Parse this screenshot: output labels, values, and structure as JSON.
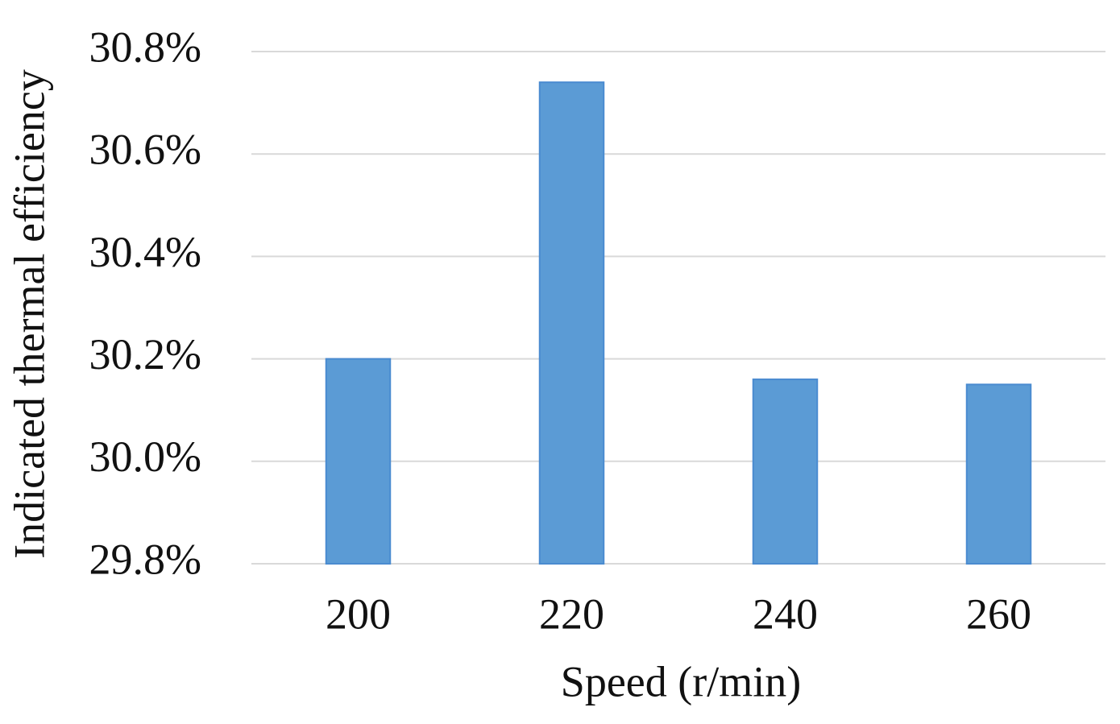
{
  "chart_data": {
    "type": "bar",
    "x_label": "Speed (r/min)",
    "y_label": "Indicated thermal efficiency",
    "categories": [
      "200",
      "220",
      "240",
      "260"
    ],
    "values": [
      30.2,
      30.74,
      30.16,
      30.15
    ],
    "color": "#5b9bd5",
    "ylim": [
      29.8,
      30.8
    ],
    "yticks": [
      {
        "value": 29.8,
        "label": "29.8%"
      },
      {
        "value": 30.0,
        "label": "30.0%"
      },
      {
        "value": 30.2,
        "label": "30.2%"
      },
      {
        "value": 30.4,
        "label": "30.4%"
      },
      {
        "value": 30.6,
        "label": "30.6%"
      },
      {
        "value": 30.8,
        "label": "30.8%"
      }
    ],
    "grid": true
  }
}
